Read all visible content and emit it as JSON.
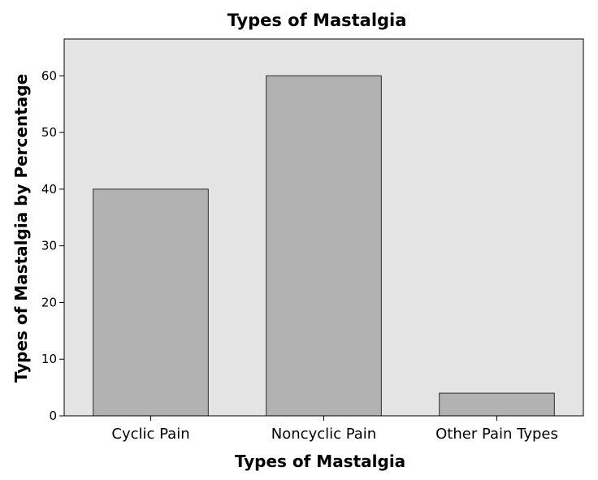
{
  "chart_data": {
    "type": "bar",
    "title": "Types of Mastalgia",
    "xlabel": "Types of Mastalgia",
    "ylabel": "Types of Mastalgia by Percentage",
    "categories": [
      "Cyclic Pain",
      "Noncyclic Pain",
      "Other Pain Types"
    ],
    "values": [
      40,
      60,
      4
    ],
    "ylim": [
      0,
      66.5
    ],
    "yticks": [
      0,
      10,
      20,
      30,
      40,
      50,
      60
    ],
    "grid": false,
    "legend": false,
    "colors": {
      "plot_background": "#e4e4e4",
      "bar_fill": "#b2b2b2",
      "bar_stroke": "#2b2b2b",
      "axis": "#000000"
    }
  }
}
